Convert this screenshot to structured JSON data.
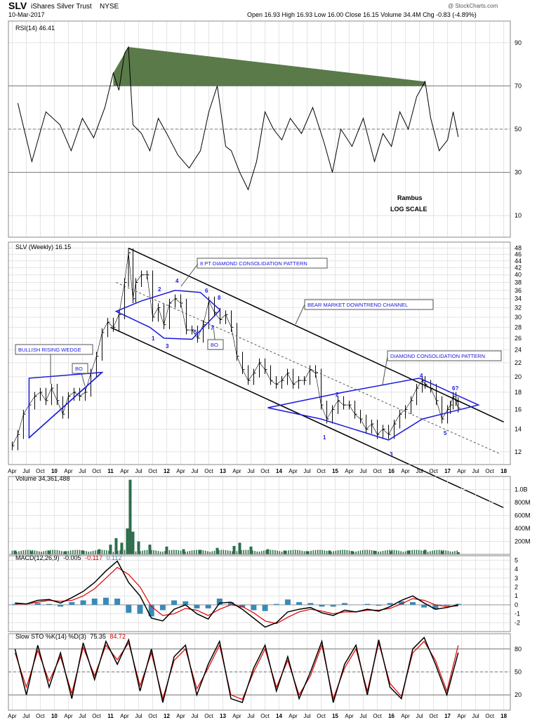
{
  "header": {
    "ticker": "SLV",
    "name": "iShares Silver Trust",
    "exchange": "NYSE",
    "date": "10-Mar-2017",
    "quote": {
      "Open": "16.93",
      "High": "16.93",
      "Low": "16.00",
      "Close": "16.15",
      "Volume": "34.4M",
      "Chg": "-0.83 (-4.89%)"
    },
    "quote_text": "Open 16.93  High 16.93  Low 16.00  Close 16.15  Volume 34.4M  Chg -0.83 (-4.89%)",
    "copyright": "@ StockCharts.com"
  },
  "colors": {
    "price": "#000000",
    "pattern": "#1a1adc",
    "annotation_text": "#1a1adc",
    "rsi_overbought": "#5a7a4a",
    "rsi_oversold": "#7a4a4a",
    "volume": "#2e6e4c",
    "macd_signal": "#e00000",
    "macd_hist": "#3a8ab8",
    "sto_d": "#e00000"
  },
  "chart_data": [
    {
      "id": "rsi",
      "type": "line",
      "title": "RSI(14) 46.41",
      "ylim": [
        0,
        100
      ],
      "yticks": [
        10,
        30,
        50,
        70,
        90
      ],
      "reference_lines": [
        30,
        50,
        70
      ],
      "grid": true,
      "x": [
        2009.35,
        2009.6,
        2009.85,
        2010.1,
        2010.3,
        2010.5,
        2010.7,
        2010.9,
        2011.05,
        2011.15,
        2011.25,
        2011.32,
        2011.4,
        2011.55,
        2011.7,
        2011.85,
        2012.0,
        2012.2,
        2012.4,
        2012.6,
        2012.75,
        2012.9,
        2013.05,
        2013.15,
        2013.3,
        2013.45,
        2013.6,
        2013.75,
        2013.9,
        2014.05,
        2014.2,
        2014.4,
        2014.6,
        2014.8,
        2014.95,
        2015.1,
        2015.3,
        2015.5,
        2015.7,
        2015.85,
        2016.0,
        2016.15,
        2016.3,
        2016.45,
        2016.6,
        2016.7,
        2016.85,
        2017.0,
        2017.1,
        2017.19
      ],
      "values": [
        62,
        35,
        58,
        52,
        40,
        55,
        46,
        60,
        76,
        68,
        85,
        88,
        52,
        48,
        40,
        55,
        48,
        38,
        32,
        40,
        58,
        70,
        42,
        40,
        30,
        22,
        35,
        58,
        50,
        45,
        55,
        48,
        60,
        44,
        30,
        50,
        42,
        55,
        35,
        48,
        42,
        58,
        50,
        65,
        72,
        55,
        40,
        45,
        58,
        46.41
      ],
      "label": "Rambus LOG SCALE"
    },
    {
      "id": "price",
      "type": "line",
      "title": "SLV (Weekly) 16.15",
      "scale": "log",
      "ylim": [
        11,
        50
      ],
      "yticks": [
        12,
        14,
        16,
        18,
        20,
        22,
        24,
        26,
        28,
        30,
        32,
        34,
        36,
        38,
        40,
        42,
        44,
        46,
        48
      ],
      "x_tick_labels": [
        "Apr",
        "Jul",
        "Oct",
        "10",
        "Apr",
        "Jul",
        "Oct",
        "11",
        "Apr",
        "Jul",
        "Oct",
        "12",
        "Apr",
        "Jul",
        "Oct",
        "13",
        "Apr",
        "Jul",
        "Oct",
        "14",
        "Apr",
        "Jul",
        "Oct",
        "15",
        "Apr",
        "Jul",
        "Oct",
        "16",
        "Apr",
        "Jul",
        "Oct",
        "17",
        "Apr",
        "Jul",
        "Oct",
        "18"
      ],
      "x_tick_bold": [
        "10",
        "11",
        "12",
        "13",
        "14",
        "15",
        "16",
        "17",
        "18"
      ],
      "xlim": [
        2009.22,
        2018.08
      ],
      "x": [
        2009.25,
        2009.35,
        2009.45,
        2009.55,
        2009.65,
        2009.75,
        2009.85,
        2009.95,
        2010.05,
        2010.15,
        2010.25,
        2010.35,
        2010.45,
        2010.55,
        2010.65,
        2010.75,
        2010.85,
        2010.95,
        2011.05,
        2011.15,
        2011.25,
        2011.32,
        2011.4,
        2011.45,
        2011.55,
        2011.65,
        2011.75,
        2011.85,
        2011.95,
        2012.05,
        2012.15,
        2012.25,
        2012.35,
        2012.45,
        2012.55,
        2012.65,
        2012.75,
        2012.85,
        2012.95,
        2013.05,
        2013.15,
        2013.25,
        2013.35,
        2013.45,
        2013.55,
        2013.65,
        2013.75,
        2013.85,
        2013.95,
        2014.05,
        2014.15,
        2014.25,
        2014.35,
        2014.45,
        2014.55,
        2014.65,
        2014.75,
        2014.85,
        2014.95,
        2015.05,
        2015.15,
        2015.25,
        2015.35,
        2015.45,
        2015.55,
        2015.65,
        2015.75,
        2015.85,
        2015.95,
        2016.05,
        2016.15,
        2016.25,
        2016.35,
        2016.45,
        2016.55,
        2016.6,
        2016.7,
        2016.8,
        2016.9,
        2017.0,
        2017.05,
        2017.1,
        2017.15,
        2017.19
      ],
      "values": [
        12.5,
        13.5,
        15.5,
        16.5,
        17.5,
        18.0,
        17.0,
        18.5,
        17.0,
        15.5,
        17.5,
        18.0,
        17.5,
        18.0,
        20.5,
        23.0,
        27.0,
        29.0,
        28.0,
        30.5,
        38.0,
        46.5,
        34.0,
        38.0,
        40.0,
        40.0,
        30.0,
        32.0,
        28.5,
        33.0,
        34.0,
        33.0,
        27.5,
        27.5,
        26.0,
        28.5,
        33.5,
        31.0,
        29.5,
        30.5,
        28.0,
        23.0,
        21.0,
        19.5,
        20.5,
        22.0,
        21.0,
        19.5,
        19.0,
        19.5,
        20.5,
        19.0,
        19.5,
        19.5,
        21.0,
        20.5,
        16.5,
        15.0,
        16.0,
        17.0,
        16.5,
        16.5,
        15.5,
        15.0,
        14.0,
        14.5,
        13.5,
        14.0,
        13.5,
        14.5,
        15.5,
        16.0,
        17.0,
        18.5,
        19.5,
        19.0,
        18.5,
        17.0,
        15.0,
        16.0,
        16.5,
        17.5,
        16.9,
        16.15
      ],
      "annotations": [
        {
          "text": "8 PT DIAMOND CONSOLIDATION PATTERN",
          "kind": "callout"
        },
        {
          "text": "BEAR MARKET DOWNTREND CHANNEL",
          "kind": "callout"
        },
        {
          "text": "DIAMOND CONSOLIDATION PATTERN",
          "kind": "callout"
        },
        {
          "text": "BULLISH RISING WEDGE",
          "kind": "callout"
        },
        {
          "text": "BO",
          "kind": "callout"
        },
        {
          "text": "BO",
          "kind": "callout"
        },
        {
          "text": "1",
          "kind": "point"
        },
        {
          "text": "2",
          "kind": "point"
        },
        {
          "text": "3",
          "kind": "point"
        },
        {
          "text": "4",
          "kind": "point"
        },
        {
          "text": "5",
          "kind": "point"
        },
        {
          "text": "6",
          "kind": "point"
        },
        {
          "text": "7",
          "kind": "point"
        },
        {
          "text": "8",
          "kind": "point"
        },
        {
          "text": "1",
          "kind": "point"
        },
        {
          "text": "2",
          "kind": "point"
        },
        {
          "text": "3",
          "kind": "point"
        },
        {
          "text": "4",
          "kind": "point"
        },
        {
          "text": "5",
          "kind": "point"
        },
        {
          "text": "6?",
          "kind": "point"
        }
      ]
    },
    {
      "id": "volume",
      "type": "bar",
      "title": "Volume 34,361,488",
      "ylim": [
        0,
        1200000000
      ],
      "yticks": [
        "200M",
        "400M",
        "600M",
        "800M",
        "1.0B"
      ],
      "ytick_values": [
        200000000,
        400000000,
        600000000,
        800000000,
        1000000000
      ],
      "x": [
        2009.3,
        2009.6,
        2009.9,
        2010.2,
        2010.5,
        2010.8,
        2011.0,
        2011.1,
        2011.2,
        2011.3,
        2011.35,
        2011.4,
        2011.5,
        2011.7,
        2012.0,
        2012.3,
        2012.6,
        2012.9,
        2013.2,
        2013.3,
        2013.5,
        2013.8,
        2014.1,
        2014.5,
        2014.9,
        2015.3,
        2015.7,
        2016.0,
        2016.3,
        2016.6,
        2016.9,
        2017.19
      ],
      "values": [
        60000000,
        50000000,
        55000000,
        50000000,
        60000000,
        80000000,
        150000000,
        250000000,
        180000000,
        400000000,
        1150000000,
        350000000,
        200000000,
        150000000,
        120000000,
        80000000,
        70000000,
        100000000,
        130000000,
        180000000,
        120000000,
        80000000,
        60000000,
        50000000,
        60000000,
        50000000,
        55000000,
        50000000,
        60000000,
        70000000,
        50000000,
        34361488
      ]
    },
    {
      "id": "macd",
      "type": "line",
      "title": "MACD(12,26,9)",
      "title_values": [
        "-0.005",
        "-0.117",
        "0.112"
      ],
      "ylim": [
        -3,
        5.5
      ],
      "yticks": [
        -2,
        -1,
        0,
        1,
        2,
        3,
        4,
        5
      ],
      "series": [
        {
          "values": [
            0.2,
            0.1,
            0.5,
            0.6,
            0.2,
            0.8,
            1.5,
            2.5,
            3.8,
            4.9,
            2.5,
            1.0,
            -1.5,
            -1.8,
            -0.5,
            0.0,
            -1.0,
            -1.6,
            0.2,
            0.3,
            -0.5,
            -1.5,
            -2.5,
            -2.0,
            -0.8,
            -0.5,
            -0.3,
            -0.9,
            -1.2,
            -0.6,
            -0.8,
            -0.5,
            -0.7,
            -0.2,
            0.5,
            1.0,
            0.2,
            -0.5,
            -0.3,
            -0.005
          ]
        },
        {
          "values": [
            0.1,
            0.1,
            0.3,
            0.5,
            0.4,
            0.5,
            1.0,
            1.8,
            3.0,
            4.2,
            3.4,
            2.0,
            -0.2,
            -1.2,
            -1.0,
            -0.4,
            -0.6,
            -1.2,
            -0.5,
            0.0,
            -0.2,
            -0.9,
            -1.8,
            -2.1,
            -1.4,
            -0.8,
            -0.5,
            -0.7,
            -1.0,
            -0.8,
            -0.8,
            -0.6,
            -0.6,
            -0.4,
            0.1,
            0.7,
            0.5,
            0.0,
            -0.2,
            -0.117
          ]
        }
      ],
      "hist": [
        0.1,
        0.0,
        0.2,
        0.1,
        -0.2,
        0.3,
        0.5,
        0.7,
        0.8,
        0.7,
        -0.9,
        -1.0,
        -1.3,
        -0.6,
        0.5,
        0.4,
        -0.4,
        -0.4,
        0.7,
        0.3,
        -0.3,
        -0.6,
        -0.7,
        0.1,
        0.6,
        0.3,
        0.2,
        -0.2,
        -0.2,
        0.2,
        0.0,
        0.1,
        -0.1,
        0.2,
        0.4,
        0.3,
        -0.3,
        -0.5,
        -0.1,
        0.112
      ]
    },
    {
      "id": "sto",
      "type": "line",
      "title": "Slow STO %K(14) %D(3)",
      "title_values": [
        "75.35",
        "84.72"
      ],
      "ylim": [
        0,
        100
      ],
      "yticks": [
        20,
        50,
        80
      ],
      "series": [
        {
          "values": [
            80,
            20,
            85,
            30,
            75,
            15,
            88,
            40,
            90,
            60,
            92,
            25,
            80,
            10,
            70,
            85,
            20,
            60,
            90,
            15,
            10,
            55,
            85,
            25,
            70,
            15,
            50,
            90,
            10,
            60,
            85,
            20,
            92,
            30,
            15,
            80,
            95,
            60,
            20,
            75.35
          ]
        },
        {
          "values": [
            75,
            30,
            78,
            38,
            70,
            22,
            82,
            45,
            85,
            66,
            88,
            32,
            75,
            15,
            65,
            80,
            28,
            55,
            85,
            20,
            14,
            50,
            80,
            30,
            65,
            20,
            45,
            85,
            15,
            55,
            80,
            25,
            88,
            35,
            18,
            75,
            90,
            65,
            25,
            84.72
          ]
        }
      ]
    }
  ]
}
